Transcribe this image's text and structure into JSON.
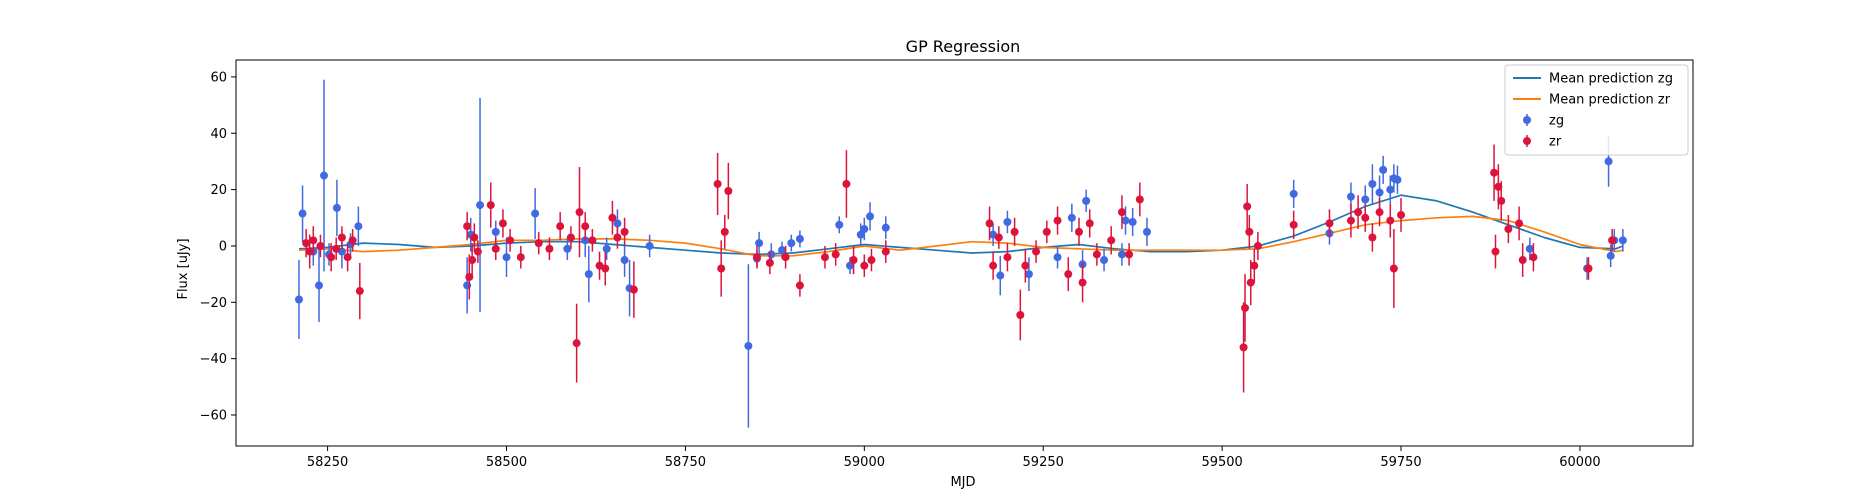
{
  "chart_data": {
    "type": "scatter",
    "title": "GP Regression",
    "xlabel": "MJD",
    "ylabel": "Flux [uJy]",
    "xlim": [
      58122,
      60158
    ],
    "ylim": [
      -71,
      66
    ],
    "xticks": [
      58250,
      58500,
      58750,
      59000,
      59250,
      59500,
      59750,
      60000
    ],
    "yticks": [
      -60,
      -40,
      -20,
      0,
      20,
      40,
      60
    ],
    "legend_position": "upper right",
    "grid": false,
    "lines": [
      {
        "name": "Mean prediction zg",
        "color": "#1f77b4",
        "x": [
          58210,
          58250,
          58300,
          58350,
          58400,
          58450,
          58500,
          58550,
          58600,
          58650,
          58700,
          58750,
          58800,
          58850,
          58900,
          58950,
          59000,
          59050,
          59100,
          59150,
          59200,
          59250,
          59300,
          59350,
          59400,
          59450,
          59500,
          59550,
          59600,
          59650,
          59700,
          59750,
          59800,
          59850,
          59900,
          59950,
          60000,
          60050,
          60060
        ],
        "y": [
          -1,
          -0.5,
          1,
          0.5,
          -0.5,
          0,
          1,
          1.5,
          1.5,
          0.5,
          -0.5,
          -1.5,
          -2.5,
          -3,
          -2.5,
          -1,
          0.5,
          -0.5,
          -1.5,
          -2.5,
          -2,
          -0.5,
          0.5,
          -1,
          -2,
          -2,
          -1.5,
          0,
          3.5,
          8.5,
          14,
          18,
          16,
          12,
          7.5,
          3,
          -0.5,
          -1,
          0
        ]
      },
      {
        "name": "Mean prediction zr",
        "color": "#ff7f0e",
        "x": [
          58210,
          58250,
          58300,
          58350,
          58400,
          58450,
          58500,
          58550,
          58600,
          58650,
          58700,
          58750,
          58800,
          58850,
          58900,
          58950,
          59000,
          59050,
          59100,
          59150,
          59200,
          59250,
          59300,
          59350,
          59400,
          59450,
          59500,
          59550,
          59600,
          59650,
          59700,
          59750,
          59800,
          59850,
          59900,
          59950,
          60000,
          60050,
          60060
        ],
        "y": [
          -1.5,
          -1,
          -2,
          -1.5,
          -0.5,
          0.5,
          2,
          2,
          2.5,
          2.5,
          2,
          1,
          -1,
          -3.5,
          -3.5,
          -2,
          0,
          -1.5,
          0,
          1.5,
          1,
          -0.5,
          -1,
          -1.5,
          -1.5,
          -1.5,
          -1.5,
          -1,
          1.5,
          4.5,
          7.5,
          9,
          10,
          10.5,
          9,
          5,
          0.5,
          -2,
          -1.5
        ]
      }
    ],
    "series": [
      {
        "name": "zg",
        "color": "#4169e1",
        "points": [
          [
            58210,
            -19,
            14
          ],
          [
            58215,
            11.5,
            10
          ],
          [
            58230,
            -2,
            5
          ],
          [
            58238,
            -14,
            13
          ],
          [
            58245,
            25,
            34
          ],
          [
            58252,
            -3,
            4
          ],
          [
            58263,
            13.5,
            10
          ],
          [
            58270,
            -2,
            6
          ],
          [
            58282,
            0.5,
            4
          ],
          [
            58293,
            7,
            7
          ],
          [
            58445,
            -14,
            10
          ],
          [
            58450,
            4,
            6
          ],
          [
            58463,
            14.5,
            38
          ],
          [
            58485,
            5,
            4
          ],
          [
            58500,
            -4,
            7
          ],
          [
            58540,
            11.5,
            9
          ],
          [
            58585,
            -1,
            4
          ],
          [
            58610,
            2,
            6
          ],
          [
            58615,
            -10,
            10
          ],
          [
            58640,
            -1,
            4
          ],
          [
            58655,
            8,
            5
          ],
          [
            58665,
            -5,
            6
          ],
          [
            58672,
            -15,
            10
          ],
          [
            58700,
            0,
            4
          ],
          [
            58838,
            -35.5,
            29
          ],
          [
            58850,
            -4.5,
            3
          ],
          [
            58853,
            1,
            4
          ],
          [
            58870,
            -3,
            4
          ],
          [
            58885,
            -1.5,
            3
          ],
          [
            58898,
            1,
            3
          ],
          [
            58910,
            2.5,
            3
          ],
          [
            58965,
            7.5,
            3
          ],
          [
            58980,
            -7,
            3
          ],
          [
            58995,
            4,
            4
          ],
          [
            59000,
            6,
            4
          ],
          [
            59008,
            10.5,
            5
          ],
          [
            59030,
            6.5,
            4
          ],
          [
            59180,
            4,
            4
          ],
          [
            59190,
            -10.5,
            7
          ],
          [
            59200,
            8.5,
            4
          ],
          [
            59230,
            -10,
            6
          ],
          [
            59270,
            -4,
            4
          ],
          [
            59290,
            10,
            5
          ],
          [
            59305,
            -6.5,
            5
          ],
          [
            59310,
            16,
            4
          ],
          [
            59335,
            -5,
            4
          ],
          [
            59360,
            -3,
            4
          ],
          [
            59365,
            9,
            5
          ],
          [
            59375,
            8.5,
            5
          ],
          [
            59395,
            5,
            5
          ],
          [
            59600,
            18.5,
            5
          ],
          [
            59650,
            4.5,
            4
          ],
          [
            59680,
            17.5,
            5
          ],
          [
            59700,
            16.5,
            5
          ],
          [
            59710,
            22,
            7
          ],
          [
            59720,
            19,
            6
          ],
          [
            59725,
            27,
            5
          ],
          [
            59735,
            20,
            5
          ],
          [
            59740,
            24,
            5
          ],
          [
            59745,
            23.5,
            5
          ],
          [
            59930,
            -1,
            4
          ],
          [
            60010,
            -8,
            4
          ],
          [
            60040,
            30,
            9
          ],
          [
            60043,
            -3.5,
            4
          ],
          [
            60048,
            2,
            4
          ],
          [
            60060,
            2,
            4
          ]
        ]
      },
      {
        "name": "zr",
        "color": "#dc143c",
        "points": [
          [
            58220,
            1,
            5
          ],
          [
            58225,
            -2,
            6
          ],
          [
            58230,
            2,
            5
          ],
          [
            58240,
            0,
            4
          ],
          [
            58255,
            -4,
            5
          ],
          [
            58262,
            -1,
            4
          ],
          [
            58270,
            3,
            4
          ],
          [
            58278,
            -4,
            5
          ],
          [
            58285,
            2,
            4
          ],
          [
            58295,
            -16,
            10
          ],
          [
            58445,
            7,
            5
          ],
          [
            58448,
            -11,
            8
          ],
          [
            58452,
            -5,
            6
          ],
          [
            58455,
            3,
            5
          ],
          [
            58460,
            -2,
            4
          ],
          [
            58478,
            14.5,
            8
          ],
          [
            58485,
            -1,
            4
          ],
          [
            58495,
            8,
            5
          ],
          [
            58505,
            2,
            4
          ],
          [
            58520,
            -4,
            4
          ],
          [
            58545,
            1,
            4
          ],
          [
            58560,
            -1,
            4
          ],
          [
            58575,
            7,
            5
          ],
          [
            58590,
            3,
            4
          ],
          [
            58598,
            -34.5,
            14
          ],
          [
            58602,
            12,
            16
          ],
          [
            58610,
            7,
            5
          ],
          [
            58620,
            2,
            4
          ],
          [
            58630,
            -7,
            5
          ],
          [
            58638,
            -8,
            6
          ],
          [
            58648,
            10,
            6
          ],
          [
            58655,
            3,
            4
          ],
          [
            58665,
            5,
            5
          ],
          [
            58678,
            -15.5,
            10
          ],
          [
            58795,
            22,
            11
          ],
          [
            58800,
            -8,
            10
          ],
          [
            58805,
            5,
            6
          ],
          [
            58810,
            19.5,
            10
          ],
          [
            58850,
            -4,
            4
          ],
          [
            58868,
            -6,
            4
          ],
          [
            58890,
            -4,
            4
          ],
          [
            58910,
            -14,
            4
          ],
          [
            58945,
            -4,
            4
          ],
          [
            58960,
            -3,
            4
          ],
          [
            58975,
            22,
            12
          ],
          [
            58985,
            -5,
            5
          ],
          [
            59000,
            -7,
            4
          ],
          [
            59010,
            -5,
            4
          ],
          [
            59030,
            -2,
            4
          ],
          [
            59175,
            8,
            6
          ],
          [
            59180,
            -7,
            5
          ],
          [
            59188,
            3,
            4
          ],
          [
            59200,
            -4,
            5
          ],
          [
            59210,
            5,
            5
          ],
          [
            59218,
            -24.5,
            9
          ],
          [
            59225,
            -7,
            6
          ],
          [
            59240,
            -2,
            4
          ],
          [
            59255,
            5,
            4
          ],
          [
            59270,
            9,
            5
          ],
          [
            59285,
            -10,
            6
          ],
          [
            59300,
            5,
            5
          ],
          [
            59305,
            -13,
            7
          ],
          [
            59315,
            8,
            5
          ],
          [
            59325,
            -3,
            4
          ],
          [
            59345,
            2,
            5
          ],
          [
            59360,
            12,
            6
          ],
          [
            59370,
            -3,
            4
          ],
          [
            59385,
            16.5,
            6
          ],
          [
            59530,
            -36,
            16
          ],
          [
            59532,
            -22,
            12
          ],
          [
            59535,
            14,
            8
          ],
          [
            59538,
            5,
            6
          ],
          [
            59540,
            -13,
            8
          ],
          [
            59545,
            -7,
            6
          ],
          [
            59550,
            0,
            5
          ],
          [
            59600,
            7.5,
            5
          ],
          [
            59650,
            8,
            5
          ],
          [
            59680,
            9,
            6
          ],
          [
            59690,
            12,
            6
          ],
          [
            59700,
            10,
            5
          ],
          [
            59710,
            3,
            5
          ],
          [
            59720,
            12,
            5
          ],
          [
            59735,
            9,
            6
          ],
          [
            59740,
            -8,
            14
          ],
          [
            59750,
            11,
            6
          ],
          [
            59880,
            26,
            10
          ],
          [
            59882,
            -2,
            6
          ],
          [
            59886,
            21,
            8
          ],
          [
            59890,
            16,
            7
          ],
          [
            59900,
            6,
            5
          ],
          [
            59915,
            8,
            6
          ],
          [
            59920,
            -5,
            6
          ],
          [
            59935,
            -4,
            5
          ],
          [
            60012,
            -8,
            4
          ],
          [
            60045,
            2,
            4
          ]
        ]
      }
    ]
  }
}
